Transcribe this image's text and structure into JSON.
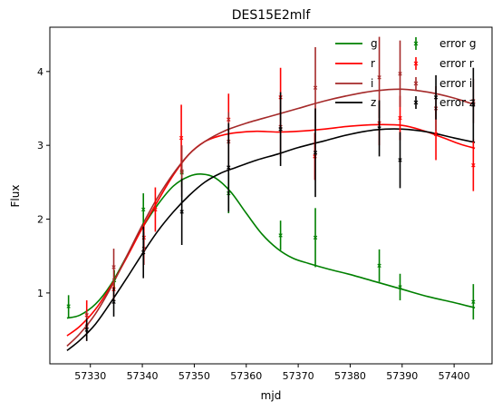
{
  "chart_data": {
    "type": "line",
    "title": "DES15E2mlf",
    "xlabel": "mjd",
    "ylabel": "Flux",
    "xlim": [
      57322.2,
      57407.3
    ],
    "ylim": [
      0.04,
      4.6
    ],
    "xticks": [
      57330,
      57340,
      57350,
      57360,
      57370,
      57380,
      57390,
      57400
    ],
    "yticks": [
      1,
      2,
      3,
      4
    ],
    "legend_placement": "top-right",
    "legend_ncol": 2,
    "grid": false,
    "series": [
      {
        "name": "g",
        "error_name": "error g",
        "color": "#008000",
        "curve_x": [
          57325.5,
          57328,
          57331,
          57334,
          57337,
          57340,
          57343,
          57346,
          57349,
          57351.5,
          57354,
          57357,
          57360,
          57363,
          57366,
          57369,
          57372,
          57376,
          57380,
          57385,
          57390,
          57395,
          57400,
          57404
        ],
        "curve_y": [
          0.66,
          0.7,
          0.85,
          1.12,
          1.5,
          1.88,
          2.2,
          2.45,
          2.58,
          2.61,
          2.56,
          2.37,
          2.08,
          1.8,
          1.6,
          1.47,
          1.4,
          1.32,
          1.25,
          1.15,
          1.05,
          0.95,
          0.87,
          0.8
        ],
        "points": [
          {
            "x": 57325.8,
            "y": 0.82,
            "err": 0.15
          },
          {
            "x": 57334.6,
            "y": 1.17,
            "err": 0.14
          },
          {
            "x": 57340.2,
            "y": 2.13,
            "err": 0.22
          },
          {
            "x": 57347.6,
            "y": 2.63,
            "err": 0.2
          },
          {
            "x": 57356.6,
            "y": 2.35,
            "err": 0.27
          },
          {
            "x": 57366.6,
            "y": 1.78,
            "err": 0.2
          },
          {
            "x": 57373.3,
            "y": 1.75,
            "err": 0.4
          },
          {
            "x": 57385.6,
            "y": 1.37,
            "err": 0.22
          },
          {
            "x": 57389.6,
            "y": 1.08,
            "err": 0.18
          },
          {
            "x": 57403.7,
            "y": 0.88,
            "err": 0.24
          }
        ]
      },
      {
        "name": "r",
        "error_name": "error r",
        "color": "#ff0000",
        "curve_x": [
          57325.5,
          57328,
          57331,
          57334,
          57337,
          57340,
          57343,
          57346,
          57349,
          57352,
          57355,
          57358,
          57362,
          57366,
          57370,
          57375,
          57380,
          57385,
          57390,
          57394,
          57398,
          57401,
          57404
        ],
        "curve_y": [
          0.42,
          0.55,
          0.78,
          1.1,
          1.48,
          1.88,
          2.25,
          2.6,
          2.88,
          3.05,
          3.13,
          3.17,
          3.19,
          3.18,
          3.19,
          3.22,
          3.26,
          3.28,
          3.27,
          3.2,
          3.1,
          3.02,
          2.96
        ],
        "points": [
          {
            "x": 57329.3,
            "y": 0.7,
            "err": 0.2
          },
          {
            "x": 57334.5,
            "y": 1.05,
            "err": 0.15
          },
          {
            "x": 57340.3,
            "y": 1.75,
            "err": 0.2
          },
          {
            "x": 57342.5,
            "y": 2.13,
            "err": 0.3
          },
          {
            "x": 57347.5,
            "y": 3.1,
            "err": 0.45
          },
          {
            "x": 57356.6,
            "y": 3.35,
            "err": 0.35
          },
          {
            "x": 57366.6,
            "y": 3.65,
            "err": 0.4
          },
          {
            "x": 57373.2,
            "y": 2.85,
            "err": 0.32
          },
          {
            "x": 57385.6,
            "y": 3.3,
            "err": 0.3
          },
          {
            "x": 57389.6,
            "y": 3.37,
            "err": 0.3
          },
          {
            "x": 57396.5,
            "y": 3.15,
            "err": 0.35
          },
          {
            "x": 57403.7,
            "y": 2.73,
            "err": 0.35
          }
        ]
      },
      {
        "name": "i",
        "error_name": "error i",
        "color": "#a52a2a",
        "curve_x": [
          57325.5,
          57328,
          57331,
          57334,
          57337,
          57340,
          57343,
          57346,
          57349,
          57352,
          57356,
          57360,
          57365,
          57370,
          57375,
          57380,
          57385,
          57390,
          57395,
          57400,
          57404
        ],
        "curve_y": [
          0.28,
          0.45,
          0.72,
          1.08,
          1.5,
          1.92,
          2.3,
          2.62,
          2.88,
          3.05,
          3.2,
          3.3,
          3.4,
          3.5,
          3.6,
          3.68,
          3.74,
          3.76,
          3.72,
          3.64,
          3.55
        ],
        "points": [
          {
            "x": 57329.3,
            "y": 0.55,
            "err": 0.2
          },
          {
            "x": 57334.5,
            "y": 1.35,
            "err": 0.25
          },
          {
            "x": 57340.3,
            "y": 1.6,
            "err": 0.22
          },
          {
            "x": 57347.6,
            "y": 2.65,
            "err": 0.35
          },
          {
            "x": 57356.6,
            "y": 3.05,
            "err": 0.4
          },
          {
            "x": 57366.6,
            "y": 3.25,
            "err": 0.4
          },
          {
            "x": 57373.3,
            "y": 3.78,
            "err": 0.55
          },
          {
            "x": 57385.6,
            "y": 3.92,
            "err": 0.55
          },
          {
            "x": 57389.6,
            "y": 3.97,
            "err": 0.45
          },
          {
            "x": 57396.5,
            "y": 3.5,
            "err": 0.3
          },
          {
            "x": 57403.7,
            "y": 3.6,
            "err": 0.3
          }
        ]
      },
      {
        "name": "z",
        "error_name": "error z",
        "color": "#000000",
        "curve_x": [
          57325.5,
          57328,
          57331,
          57334,
          57337,
          57340,
          57343,
          57346,
          57349,
          57352,
          57355,
          57358,
          57362,
          57366,
          57370,
          57375,
          57380,
          57385,
          57390,
          57395,
          57400,
          57404
        ],
        "curve_y": [
          0.22,
          0.36,
          0.58,
          0.88,
          1.2,
          1.53,
          1.84,
          2.1,
          2.32,
          2.5,
          2.62,
          2.7,
          2.8,
          2.88,
          2.97,
          3.06,
          3.15,
          3.21,
          3.22,
          3.18,
          3.1,
          3.04
        ],
        "points": [
          {
            "x": 57329.3,
            "y": 0.5,
            "err": 0.15
          },
          {
            "x": 57334.5,
            "y": 0.88,
            "err": 0.2
          },
          {
            "x": 57340.2,
            "y": 1.55,
            "err": 0.35
          },
          {
            "x": 57347.6,
            "y": 2.1,
            "err": 0.45
          },
          {
            "x": 57356.6,
            "y": 2.7,
            "err": 0.6
          },
          {
            "x": 57366.6,
            "y": 3.22,
            "err": 0.5
          },
          {
            "x": 57373.3,
            "y": 2.9,
            "err": 0.6
          },
          {
            "x": 57385.6,
            "y": 3.23,
            "err": 0.38
          },
          {
            "x": 57389.6,
            "y": 2.8,
            "err": 0.38
          },
          {
            "x": 57396.5,
            "y": 3.65,
            "err": 0.3
          },
          {
            "x": 57403.7,
            "y": 3.55,
            "err": 0.5
          }
        ]
      }
    ]
  }
}
